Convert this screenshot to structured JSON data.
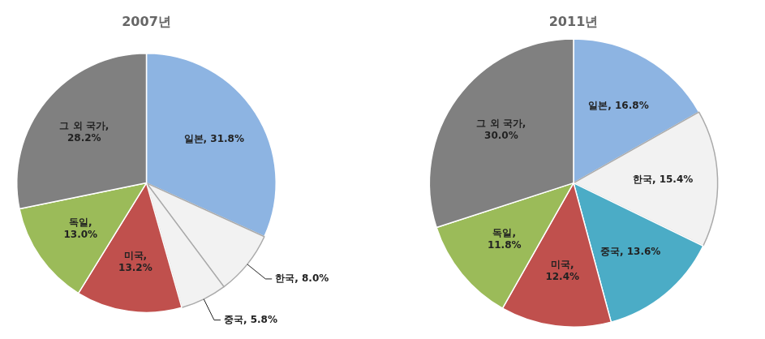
{
  "chart_data": [
    {
      "type": "pie",
      "title": "2007년",
      "categories": [
        "일본",
        "한국",
        "중국",
        "미국",
        "독일",
        "그 외 국가"
      ],
      "values": [
        31.8,
        8.0,
        5.8,
        13.2,
        13.0,
        28.2
      ],
      "colors": [
        "#8DB4E2",
        "#F2F2F2",
        "#F2F2F2",
        "#C0504D",
        "#9BBB59",
        "#808080"
      ],
      "data_labels": true,
      "value_labels": [
        "일본, 31.8%",
        "한국, 8.0%",
        "중국, 5.8%",
        "미국,\n13.2%",
        "독일,\n13.0%",
        "그 외 국가,\n28.2%"
      ]
    },
    {
      "type": "pie",
      "title": "2011년",
      "categories": [
        "일본",
        "한국",
        "중국",
        "미국",
        "독일",
        "그 외 국가"
      ],
      "values": [
        16.8,
        15.4,
        13.6,
        12.4,
        11.8,
        30.0
      ],
      "colors": [
        "#8DB4E2",
        "#F2F2F2",
        "#4BACC6",
        "#C0504D",
        "#9BBB59",
        "#808080"
      ],
      "data_labels": true,
      "value_labels": [
        "일본, 16.8%",
        "한국, 15.4%",
        "중국, 13.6%",
        "미국,\n12.4%",
        "독일,\n11.8%",
        "그 외 국가,\n30.0%"
      ]
    }
  ]
}
